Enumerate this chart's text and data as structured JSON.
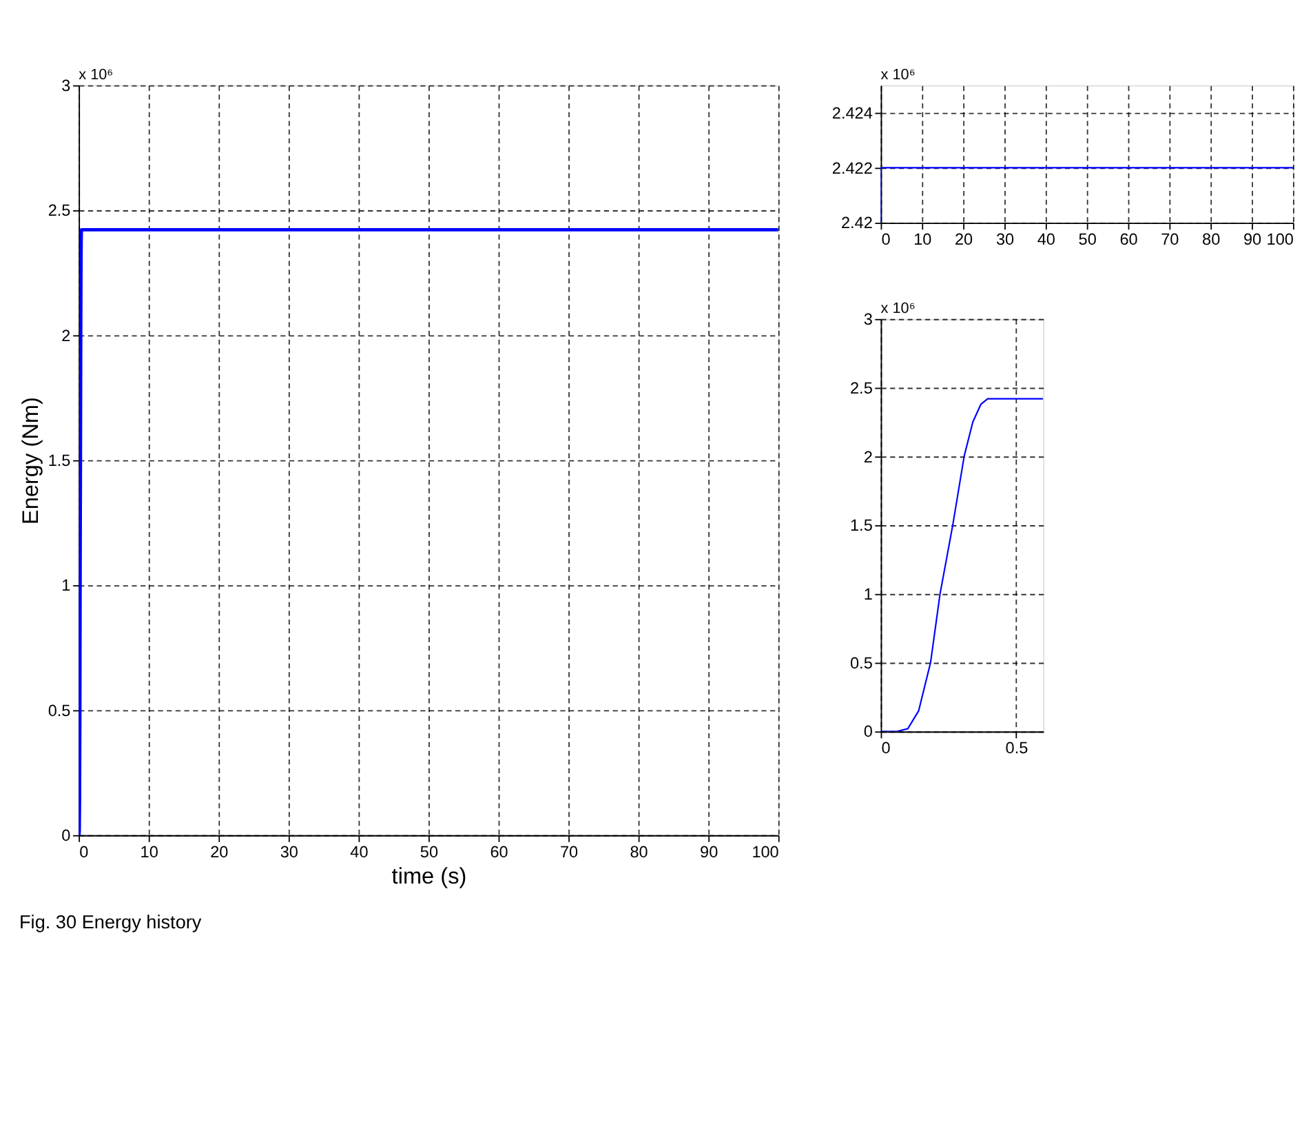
{
  "chart_data": [
    {
      "type": "line",
      "xlabel": "time (s)",
      "ylabel": "Energy (Nm)",
      "x": [
        0,
        0.06,
        0.1,
        0.14,
        0.184,
        0.219,
        0.266,
        0.308,
        0.34,
        0.37,
        0.395,
        100
      ],
      "series": [
        {
          "color": "#0000ff",
          "values": [
            0,
            0,
            0.02,
            0.15,
            0.5,
            1,
            1.5,
            2,
            2.25,
            2.38,
            2.422,
            2.422
          ]
        }
      ],
      "xlim": [
        0,
        100
      ],
      "ylim": [
        0,
        3
      ],
      "xticks": [
        0,
        10,
        20,
        30,
        40,
        50,
        60,
        70,
        80,
        90,
        100
      ],
      "yticks": [
        0,
        0.5,
        1,
        1.5,
        2,
        2.5,
        3
      ],
      "grid": true,
      "annotations": [
        "x 10⁶",
        "Fig. 30  Energy history"
      ]
    },
    {
      "type": "line",
      "x": [
        0,
        0.06,
        0.1,
        0.14,
        0.184,
        0.219,
        0.266,
        0.308,
        0.34,
        0.37,
        0.395,
        0.6
      ],
      "series": [
        {
          "color": "#0000ff",
          "values": [
            0,
            0,
            0.02,
            0.15,
            0.5,
            1,
            1.5,
            2,
            2.25,
            2.38,
            2.42,
            2.42
          ]
        }
      ],
      "xlim": [
        0,
        0.6
      ],
      "ylim": [
        0,
        3
      ],
      "xticks": [
        0,
        0.5
      ],
      "yticks": [
        0,
        0.5,
        1,
        1.5,
        2,
        2.5,
        3
      ],
      "grid": true,
      "annotations": [
        "x 10⁶"
      ]
    },
    {
      "type": "line",
      "x": [
        0,
        0,
        100
      ],
      "series": [
        {
          "color": "#0000ff",
          "values": [
            2.42,
            2.422,
            2.422
          ]
        }
      ],
      "xlim": [
        0,
        100
      ],
      "ylim": [
        2.42,
        2.425
      ],
      "xticks": [
        0,
        10,
        20,
        30,
        40,
        50,
        60,
        70,
        80,
        90,
        100
      ],
      "yticks": [
        2.42,
        2.422,
        2.424
      ],
      "grid": true,
      "annotations": [
        "x 10⁶"
      ]
    }
  ]
}
